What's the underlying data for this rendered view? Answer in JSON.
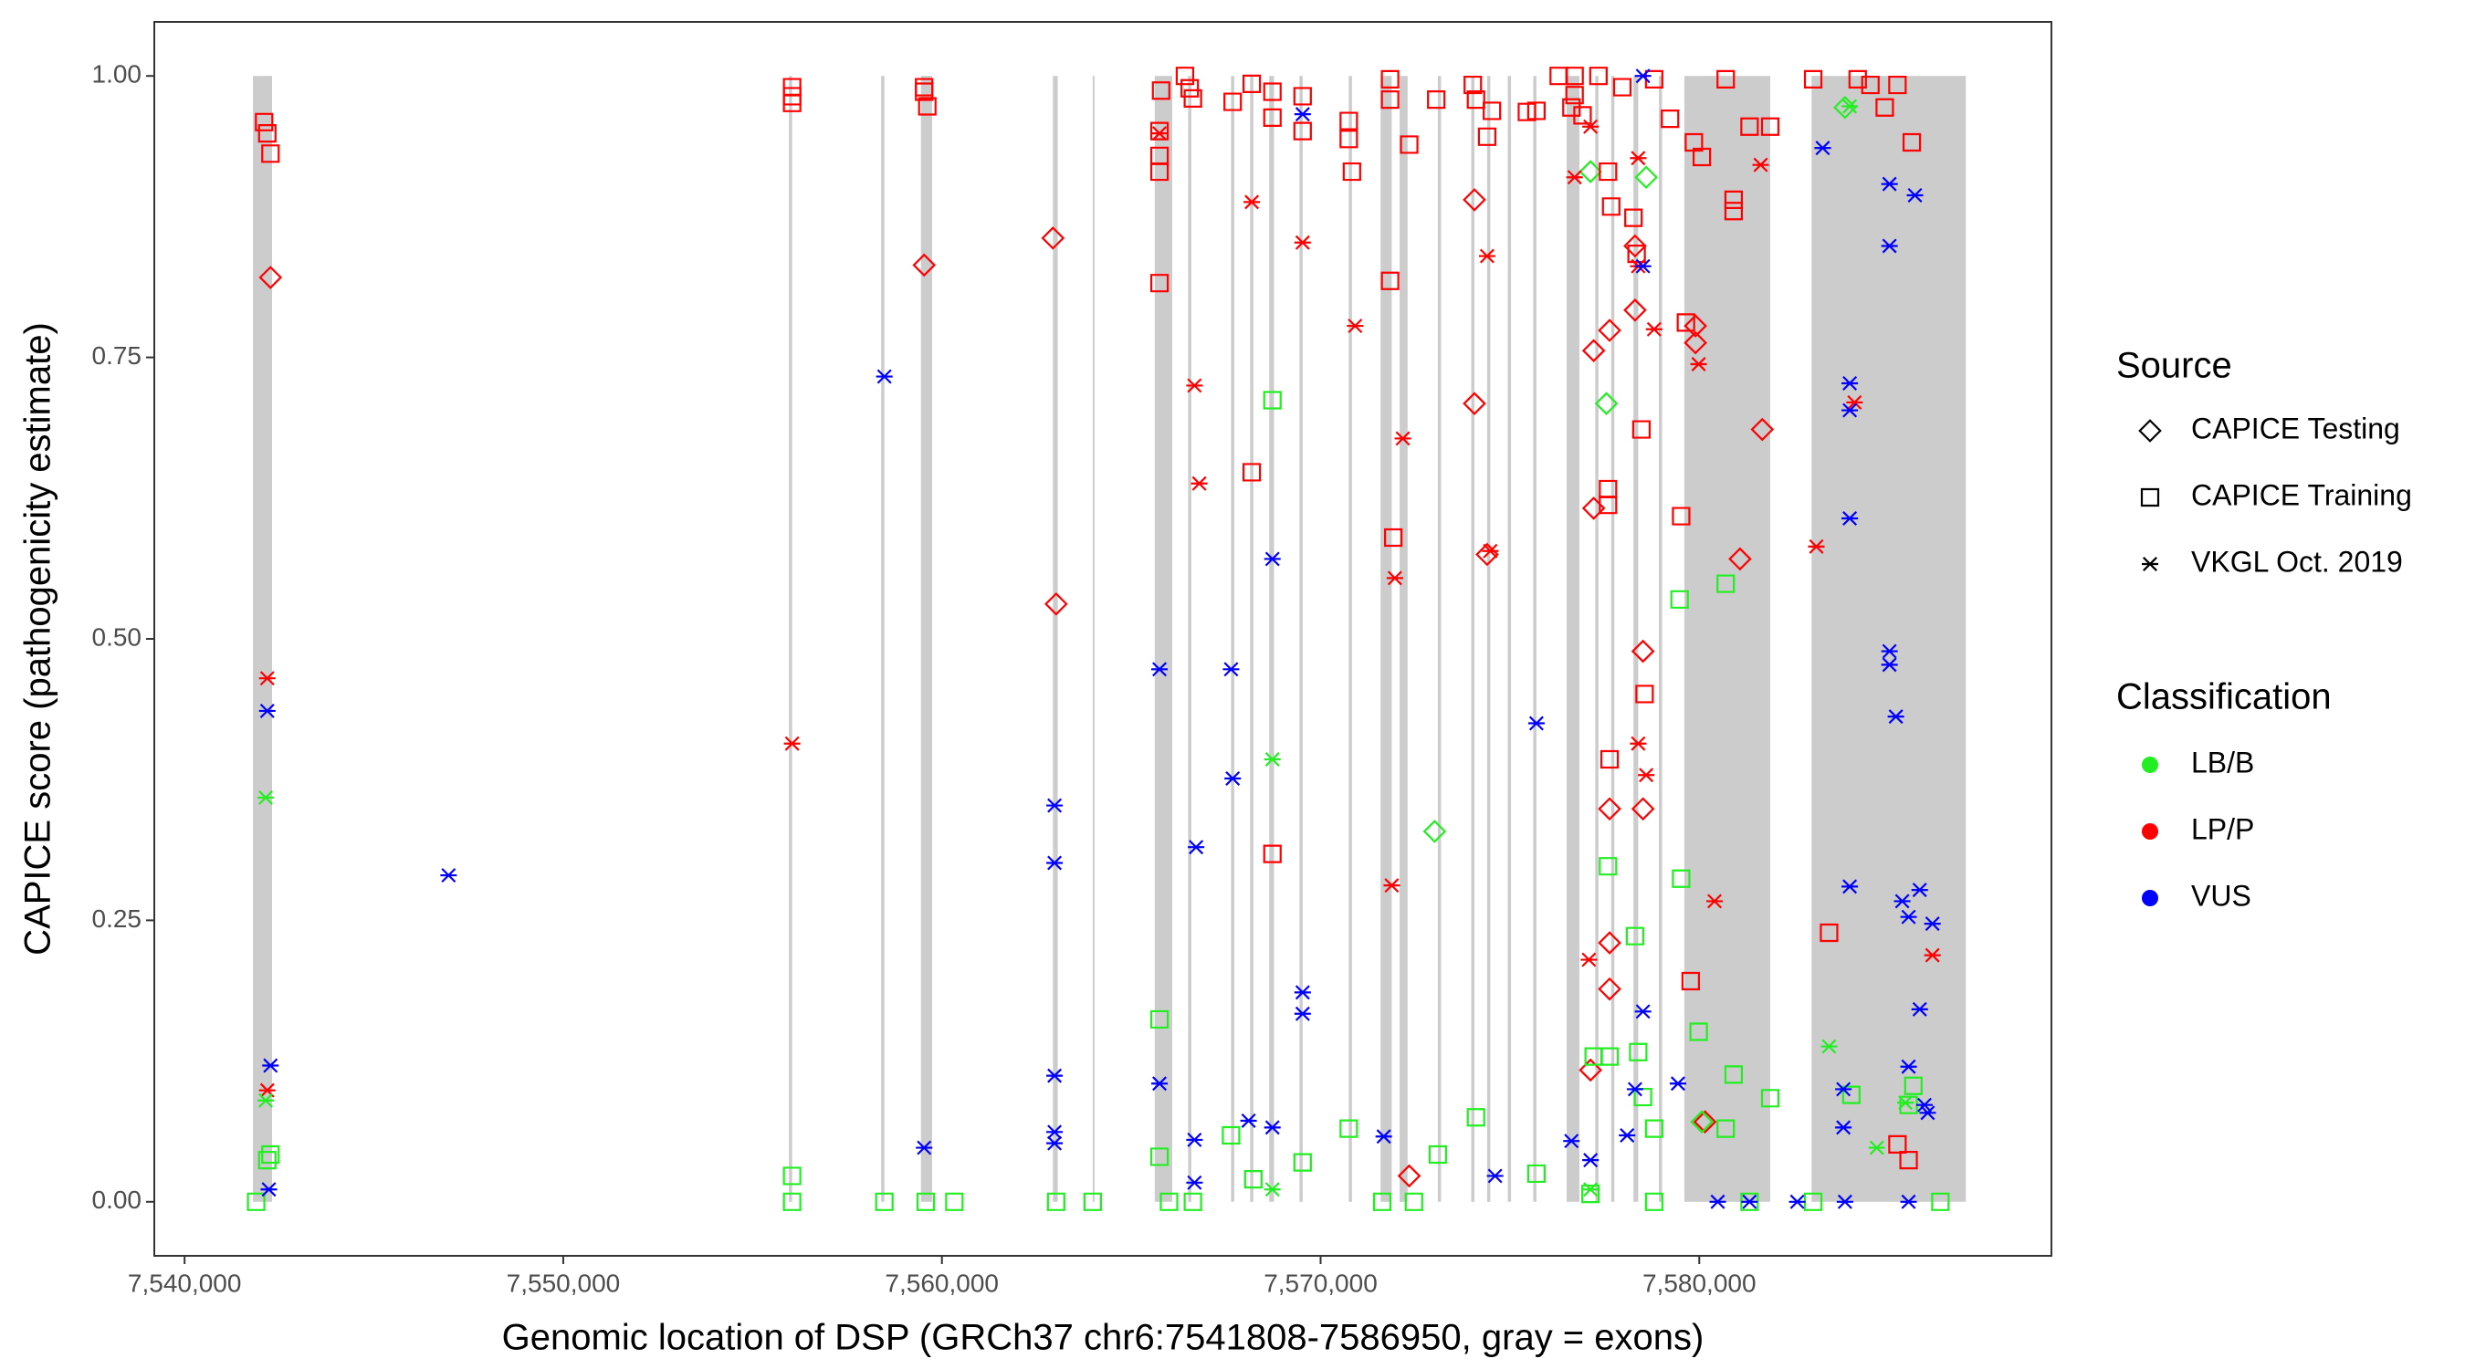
{
  "chart_data": {
    "type": "scatter",
    "x_label": "Genomic location of DSP (GRCh37 chr6:7541808-7586950, gray = exons)",
    "y_label": "CAPICE score (pathogenicity estimate)",
    "xlim": [
      7539200,
      7589300
    ],
    "ylim": [
      -0.048,
      1.048
    ],
    "xticks": [
      {
        "value": 7540000,
        "label": "7,540,000"
      },
      {
        "value": 7550000,
        "label": "7,550,000"
      },
      {
        "value": 7560000,
        "label": "7,560,000"
      },
      {
        "value": 7570000,
        "label": "7,570,000"
      },
      {
        "value": 7580000,
        "label": "7,580,000"
      }
    ],
    "yticks": [
      {
        "value": 0,
        "label": "0.00"
      },
      0.25,
      {
        "value": 0.5,
        "label": "0.50"
      },
      0.75,
      {
        "value": 1,
        "label": "1.00"
      }
    ],
    "grid": false,
    "exon_color": "#cccccc",
    "exon_yrange": [
      0,
      1
    ],
    "exons": [
      [
        7541806,
        7542310
      ],
      [
        7555960,
        7556044
      ],
      [
        7558396,
        7558480
      ],
      [
        7559446,
        7559740
      ],
      [
        7562932,
        7563058
      ],
      [
        7563982,
        7564024
      ],
      [
        7565620,
        7566082
      ],
      [
        7566502,
        7566586
      ],
      [
        7567636,
        7567720
      ],
      [
        7568140,
        7568224
      ],
      [
        7568644,
        7568770
      ],
      [
        7569442,
        7569526
      ],
      [
        7570744,
        7570828
      ],
      [
        7571584,
        7571878
      ],
      [
        7572088,
        7572298
      ],
      [
        7573096,
        7573180
      ],
      [
        7573978,
        7574062
      ],
      [
        7574398,
        7574482
      ],
      [
        7574944,
        7575028
      ],
      [
        7575616,
        7575700
      ],
      [
        7576498,
        7576834
      ],
      [
        7577254,
        7577338
      ],
      [
        7577674,
        7577758
      ],
      [
        7578262,
        7578388
      ],
      [
        7578934,
        7579018
      ],
      [
        7579606,
        7581874
      ],
      [
        7582966,
        7587040
      ]
    ],
    "shape_legend_title": "Source",
    "color_legend_title": "Classification",
    "sources": [
      {
        "name": "CAPICE Testing",
        "shape": "diamond"
      },
      {
        "name": "CAPICE Training",
        "shape": "square"
      },
      {
        "name": "VKGL Oct. 2019",
        "shape": "asterisk"
      }
    ],
    "classifications": [
      {
        "name": "LB/B",
        "color": "#22ee22"
      },
      {
        "name": "LP/P",
        "color": "#ff0000"
      },
      {
        "name": "VUS",
        "color": "#0000ff"
      }
    ],
    "series": [
      {
        "source": "CAPICE Testing",
        "classification": "LP/P",
        "x": [
          7542268,
          7559530,
          7562932,
          7563016,
          7574062,
          7574062,
          7574398,
          7577212,
          7577632,
          7577212,
          7577128,
          7577632,
          7577632,
          7577632,
          7578514,
          7578514,
          7579900,
          7579900,
          7581076,
          7581664,
          7580152,
          7578304,
          7578304,
          7572340
        ],
        "values": [
          0.821,
          0.832,
          0.856,
          0.531,
          0.89,
          0.709,
          0.575,
          0.756,
          0.774,
          0.616,
          0.117,
          0.349,
          0.23,
          0.189,
          0.489,
          0.349,
          0.763,
          0.778,
          0.571,
          0.686,
          0.071,
          0.792,
          0.849,
          0.023
        ]
      },
      {
        "source": "CAPICE Testing",
        "classification": "LB/B",
        "x": [
          7573012,
          7577548,
          7578598,
          7577128,
          7583848,
          7580068
        ],
        "values": [
          0.329,
          0.709,
          0.91,
          0.915,
          0.972,
          0.071
        ]
      },
      {
        "source": "CAPICE Training",
        "classification": "LP/P",
        "x": [
          7542100,
          7542184,
          7542268,
          7556044,
          7556044,
          7556044,
          7559530,
          7559530,
          7559614,
          7565746,
          7565746,
          7565746,
          7565746,
          7565788,
          7566418,
          7566544,
          7566628,
          7567678,
          7568182,
          7568728,
          7568728,
          7569526,
          7569526,
          7570744,
          7570744,
          7570828,
          7571836,
          7571836,
          7571836,
          7571920,
          7572340,
          7573054,
          7574020,
          7574104,
          7574398,
          7574524,
          7575448,
          7575700,
          7576624,
          7576708,
          7576918,
          7577590,
          7577674,
          7577590,
          7577590,
          7577632,
          7578262,
          7578346,
          7578472,
          7578556,
          7579522,
          7579648,
          7579774,
          7579858,
          7580068,
          7580908,
          7580908,
          7581328,
          7581874,
          7583428,
          7584520,
          7584898,
          7585234,
          7585612,
          7585234,
          7585528,
          7583008,
          7584184,
          7580698,
          7578808,
          7579228,
          7577968,
          7577338,
          7576708,
          7576288,
          7568728,
          7568182
        ],
        "values": [
          0.959,
          0.949,
          0.931,
          0.99,
          0.982,
          0.976,
          0.99,
          0.986,
          0.973,
          0.951,
          0.929,
          0.915,
          0.816,
          0.987,
          1.0,
          0.989,
          0.98,
          0.977,
          0.993,
          0.986,
          0.963,
          0.982,
          0.951,
          0.96,
          0.944,
          0.915,
          0.997,
          0.979,
          0.818,
          0.59,
          0.939,
          0.979,
          0.992,
          0.979,
          0.946,
          0.969,
          0.968,
          0.969,
          0.972,
          0.983,
          0.965,
          0.915,
          0.884,
          0.633,
          0.619,
          0.393,
          0.874,
          0.842,
          0.686,
          0.451,
          0.609,
          0.781,
          0.196,
          0.941,
          0.928,
          0.89,
          0.88,
          0.955,
          0.955,
          0.239,
          0.992,
          0.972,
          0.992,
          0.941,
          0.051,
          0.037,
          0.997,
          0.997,
          0.997,
          0.997,
          0.962,
          0.99,
          1.0,
          1.0,
          1.0,
          0.309,
          0.648
        ]
      },
      {
        "source": "CAPICE Training",
        "classification": "LB/B",
        "x": [
          7541890,
          7542184,
          7542268,
          7556044,
          7556044,
          7558480,
          7559572,
          7560328,
          7563016,
          7563982,
          7565746,
          7565746,
          7565998,
          7566628,
          7567636,
          7568224,
          7568728,
          7569526,
          7570744,
          7571626,
          7572466,
          7573096,
          7574104,
          7575700,
          7577128,
          7577212,
          7577590,
          7577632,
          7578304,
          7578388,
          7578514,
          7578808,
          7579522,
          7579984,
          7580698,
          7580908,
          7581874,
          7584016,
          7585654,
          7578808,
          7581328,
          7583008,
          7586368,
          7579480,
          7580698,
          7585528
        ],
        "values": [
          0,
          0.037,
          0.042,
          0.023,
          0,
          0,
          0,
          0,
          0,
          0,
          0.162,
          0.04,
          0,
          0,
          0.059,
          0.02,
          0.712,
          0.035,
          0.065,
          0,
          0,
          0.042,
          0.075,
          0.025,
          0.007,
          0.129,
          0.298,
          0.129,
          0.236,
          0.133,
          0.093,
          0.065,
          0.287,
          0.151,
          0.065,
          0.113,
          0.092,
          0.095,
          0.103,
          0,
          0,
          0,
          0,
          0.535,
          0.549,
          0.086
        ]
      },
      {
        "source": "VKGL Oct. 2019",
        "classification": "LP/P",
        "x": [
          7542184,
          7542184,
          7556044,
          7565746,
          7566670,
          7566796,
          7568182,
          7569526,
          7570912,
          7571878,
          7571962,
          7572172,
          7574398,
          7574482,
          7576708,
          7577086,
          7578388,
          7578598,
          7578808,
          7579984,
          7580404,
          7581622,
          7583092,
          7584100,
          7586158,
          7578388,
          7578388,
          7577128
        ],
        "values": [
          0.465,
          0.099,
          0.407,
          0.949,
          0.725,
          0.638,
          0.888,
          0.852,
          0.778,
          0.281,
          0.554,
          0.678,
          0.84,
          0.578,
          0.91,
          0.215,
          0.407,
          0.379,
          0.775,
          0.744,
          0.267,
          0.921,
          0.582,
          0.71,
          0.219,
          0.831,
          0.927,
          0.955
        ]
      },
      {
        "source": "VKGL Oct. 2019",
        "classification": "LB/B",
        "x": [
          7542142,
          7542142,
          7568728,
          7583428,
          7583974,
          7585444,
          7584688,
          7577128,
          7568728
        ],
        "values": [
          0.359,
          0.09,
          0.393,
          0.138,
          0.973,
          0.088,
          0.048,
          0.011,
          0.011
        ]
      },
      {
        "source": "VKGL Oct. 2019",
        "classification": "VUS",
        "x": [
          7542184,
          7542268,
          7542226,
          7546972,
          7558480,
          7559530,
          7562974,
          7562974,
          7562974,
          7562974,
          7562974,
          7565746,
          7565746,
          7566670,
          7566712,
          7566670,
          7567636,
          7567678,
          7568098,
          7568728,
          7568728,
          7569526,
          7569526,
          7569526,
          7571668,
          7575700,
          7576624,
          7578094,
          7578304,
          7578514,
          7578514,
          7579438,
          7583260,
          7583974,
          7583974,
          7583974,
          7583974,
          7583806,
          7583806,
          7585024,
          7585024,
          7585024,
          7585024,
          7585192,
          7585360,
          7585528,
          7585822,
          7585822,
          7585696,
          7585948,
          7586158,
          7586032,
          7585528,
          7578514,
          7580488,
          7581328,
          7582588,
          7583848,
          7585528,
          7574608,
          7577128
        ],
        "values": [
          0.436,
          0.121,
          0.011,
          0.29,
          0.733,
          0.048,
          0.352,
          0.301,
          0.112,
          0.062,
          0.052,
          0.473,
          0.105,
          0.055,
          0.315,
          0.017,
          0.473,
          0.376,
          0.072,
          0.571,
          0.066,
          0.186,
          0.167,
          0.966,
          0.058,
          0.425,
          0.054,
          0.059,
          0.1,
          0.169,
          0.831,
          0.105,
          0.936,
          0.607,
          0.727,
          0.703,
          0.28,
          0.1,
          0.066,
          0.904,
          0.849,
          0.489,
          0.477,
          0.431,
          0.267,
          0.253,
          0.277,
          0.171,
          0.894,
          0.086,
          0.247,
          0.079,
          0.12,
          1.0,
          0,
          0,
          0,
          0,
          0,
          0.023,
          0.037
        ]
      }
    ]
  }
}
